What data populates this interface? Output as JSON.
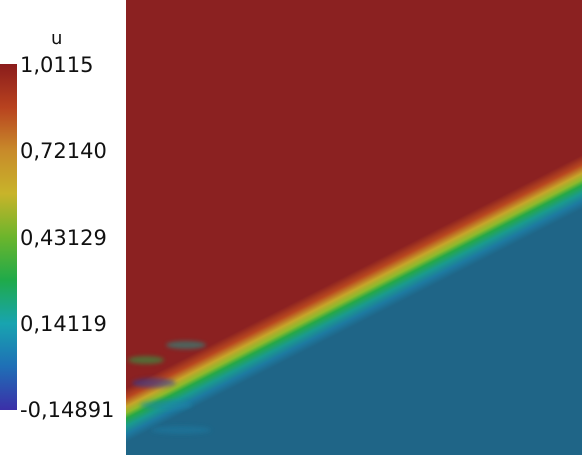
{
  "legend": {
    "title": "u",
    "ticks": [
      "1,0115",
      "0,72140",
      "0,43129",
      "0,14119",
      "-0,14891"
    ],
    "range": {
      "min": -0.14891,
      "max": 1.0115
    },
    "colormap": [
      "#3b2fa8",
      "#1f6fb6",
      "#18a4b0",
      "#1faa4a",
      "#6cb52c",
      "#c8b42a",
      "#c88a2a",
      "#b8421f",
      "#8a1c1c"
    ]
  },
  "field": {
    "high_color": "#8b2121",
    "low_color": "#1f6587",
    "front_color": "#25a847"
  }
}
